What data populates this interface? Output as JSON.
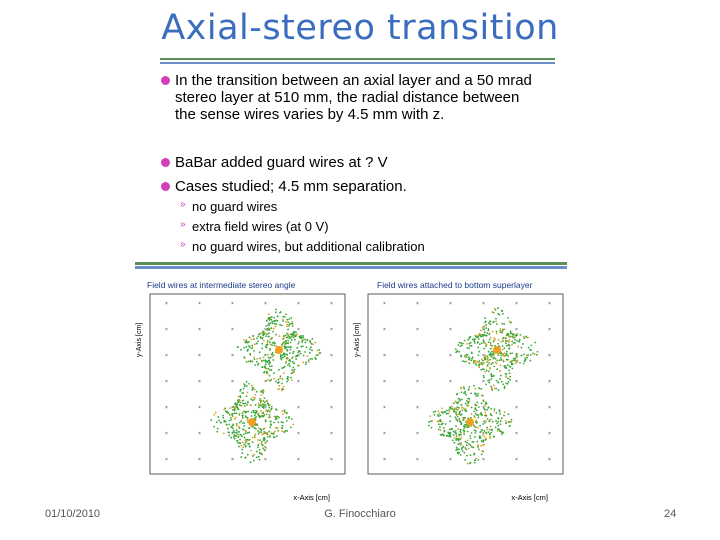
{
  "title": "Axial-stereo transition",
  "bullets": [
    "In the transition between an axial layer and a 50 mrad stereo layer at 510 mm, the radial distance between the sense wires varies by 4.5 mm with z.",
    "BaBar added guard wires at ? V",
    "Cases studied; 4.5 mm separation."
  ],
  "sub_bullets": [
    "no guard wires",
    "extra field wires (at 0 V)",
    "no guard wires, but additional calibration"
  ],
  "figure": {
    "panels": [
      {
        "title": "Field wires at intermediate stereo angle",
        "x_label": "x-Axis [cm]",
        "y_label": "y-Axis [cm]"
      },
      {
        "title": "Field wires attached to bottom superlayer",
        "x_label": "x-Axis [cm]",
        "y_label": "y-Axis [cm]"
      }
    ]
  },
  "footer": {
    "date": "01/10/2010",
    "author": "G. Finocchiaro",
    "page": "24"
  }
}
